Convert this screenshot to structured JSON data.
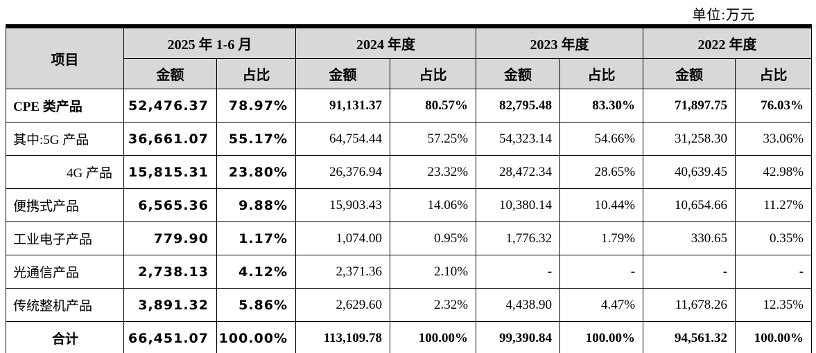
{
  "page": {
    "unit_label": "单位:万元"
  },
  "colors": {
    "header_bg": "#d8d8d8",
    "border": "#000000",
    "text": "#000000"
  },
  "table": {
    "header": {
      "item": "项目",
      "amount": "金额",
      "ratio": "占比",
      "periods": [
        "2025 年 1-6 月",
        "2024 年度",
        "2023 年度",
        "2022 年度"
      ]
    },
    "rows": [
      {
        "label": "CPE 类产品",
        "label_align": "left",
        "bold": true,
        "cells": [
          "52,476.37",
          "78.97%",
          "91,131.37",
          "80.57%",
          "82,795.48",
          "83.30%",
          "71,897.75",
          "76.03%"
        ]
      },
      {
        "label": "其中:5G 产品",
        "label_align": "left",
        "bold": false,
        "cells": [
          "36,661.07",
          "55.17%",
          "64,754.44",
          "57.25%",
          "54,323.14",
          "54.66%",
          "31,258.30",
          "33.06%"
        ]
      },
      {
        "label": "4G 产品",
        "label_align": "right",
        "bold": false,
        "cells": [
          "15,815.31",
          "23.80%",
          "26,376.94",
          "23.32%",
          "28,472.34",
          "28.65%",
          "40,639.45",
          "42.98%"
        ]
      },
      {
        "label": "便携式产品",
        "label_align": "left",
        "bold": false,
        "cells": [
          "6,565.36",
          "9.88%",
          "15,903.43",
          "14.06%",
          "10,380.14",
          "10.44%",
          "10,654.66",
          "11.27%"
        ]
      },
      {
        "label": "工业电子产品",
        "label_align": "left",
        "bold": false,
        "cells": [
          "779.90",
          "1.17%",
          "1,074.00",
          "0.95%",
          "1,776.32",
          "1.79%",
          "330.65",
          "0.35%"
        ]
      },
      {
        "label": "光通信产品",
        "label_align": "left",
        "bold": false,
        "cells": [
          "2,738.13",
          "4.12%",
          "2,371.36",
          "2.10%",
          "-",
          "-",
          "-",
          "-"
        ]
      },
      {
        "label": "传统整机产品",
        "label_align": "left",
        "bold": false,
        "cells": [
          "3,891.32",
          "5.86%",
          "2,629.60",
          "2.32%",
          "4,438.90",
          "4.47%",
          "11,678.26",
          "12.35%"
        ]
      },
      {
        "label": "合计",
        "label_align": "center",
        "bold": true,
        "cells": [
          "66,451.07",
          "100.00%",
          "113,109.78",
          "100.00%",
          "99,390.84",
          "100.00%",
          "94,561.32",
          "100.00%"
        ]
      }
    ]
  }
}
